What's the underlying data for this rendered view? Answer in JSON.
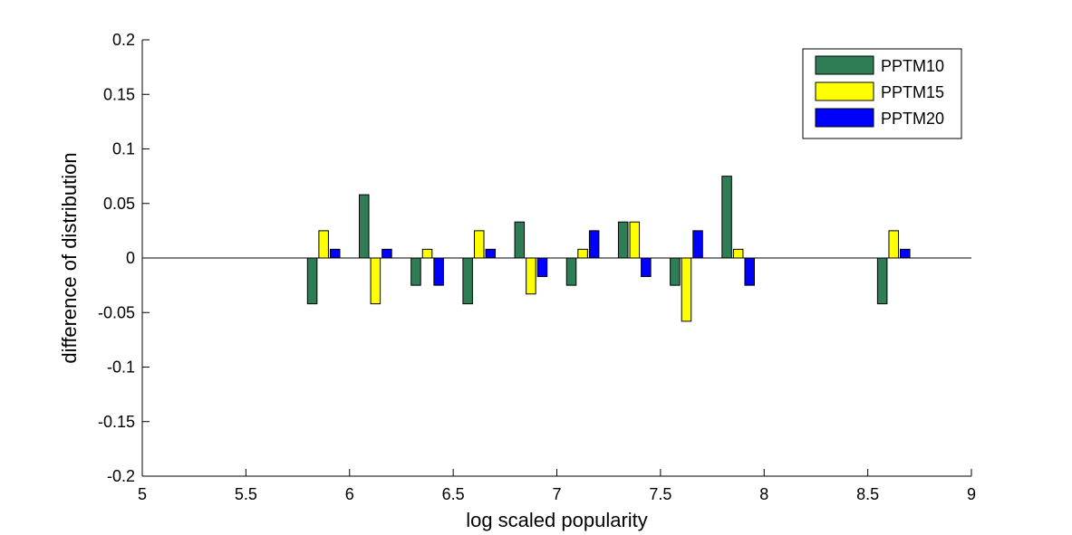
{
  "chart_data": {
    "type": "bar",
    "title": "",
    "xlabel": "log scaled popularity",
    "ylabel": "difference of distribution",
    "xlim": [
      5,
      9
    ],
    "ylim": [
      -0.2,
      0.2
    ],
    "xticks": [
      "5",
      "5.5",
      "6",
      "6.5",
      "7",
      "7.5",
      "8",
      "8.5",
      "9"
    ],
    "yticks": [
      "0.2",
      "0.15",
      "0.1",
      "0.05",
      "0",
      "-0.05",
      "-0.1",
      "-0.15",
      "-0.2"
    ],
    "grid": false,
    "legend_position": "top-right",
    "x": [
      5.875,
      6.125,
      6.375,
      6.625,
      6.875,
      7.125,
      7.375,
      7.625,
      7.875,
      8.625
    ],
    "series": [
      {
        "name": "PPTM10",
        "color": "#2e7d55",
        "values": [
          -0.042,
          0.058,
          -0.025,
          -0.042,
          0.033,
          -0.025,
          0.033,
          -0.025,
          0.075,
          -0.042
        ]
      },
      {
        "name": "PPTM15",
        "color": "#ffff00",
        "values": [
          0.025,
          -0.042,
          0.008,
          0.025,
          -0.033,
          0.008,
          0.033,
          -0.058,
          0.008,
          0.025
        ]
      },
      {
        "name": "PPTM20",
        "color": "#0000ff",
        "values": [
          0.008,
          0.008,
          -0.025,
          0.008,
          -0.017,
          0.025,
          -0.017,
          0.025,
          -0.025,
          0.008
        ]
      }
    ]
  }
}
